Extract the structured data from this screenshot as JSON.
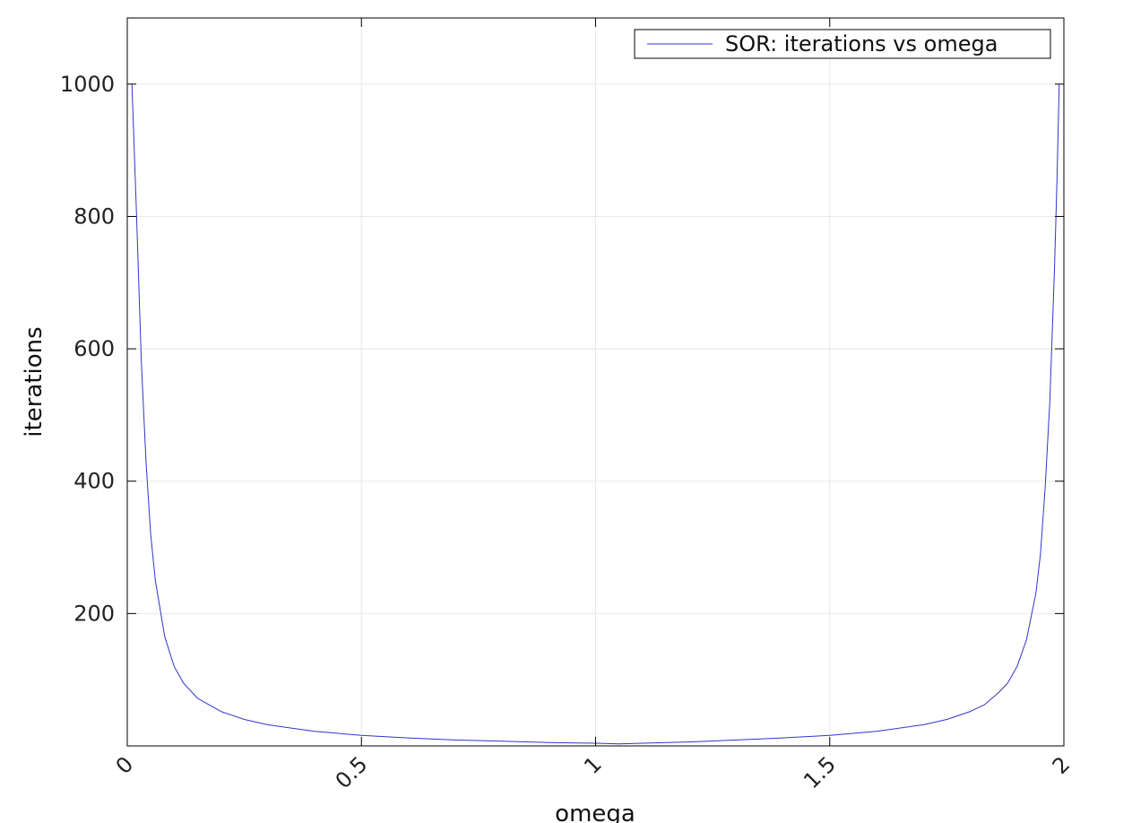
{
  "chart_data": {
    "type": "line",
    "title": "",
    "xlabel": "omega",
    "ylabel": "iterations",
    "xlim": [
      0,
      2
    ],
    "ylim": [
      0,
      1100
    ],
    "xticks": [
      0,
      0.5,
      1,
      1.5,
      2
    ],
    "xtick_labels": [
      "0",
      "0.5",
      "1",
      "1.5",
      "2"
    ],
    "yticks": [
      200,
      400,
      600,
      800,
      1000
    ],
    "ytick_labels": [
      "200",
      "400",
      "600",
      "800",
      "1000"
    ],
    "grid": true,
    "legend_position": "top-right",
    "series": [
      {
        "name": "SOR: iterations vs omega",
        "color": "#3333cc",
        "x": [
          0.01,
          0.02,
          0.03,
          0.04,
          0.05,
          0.06,
          0.08,
          0.1,
          0.12,
          0.15,
          0.2,
          0.25,
          0.3,
          0.35,
          0.4,
          0.5,
          0.6,
          0.7,
          0.8,
          0.9,
          1.0,
          1.05,
          1.1,
          1.2,
          1.3,
          1.4,
          1.5,
          1.6,
          1.7,
          1.75,
          1.8,
          1.83,
          1.86,
          1.88,
          1.9,
          1.92,
          1.94,
          1.95,
          1.96,
          1.97,
          1.98,
          1.985,
          1.99
        ],
        "y": [
          1000,
          800,
          580,
          430,
          320,
          250,
          165,
          120,
          95,
          72,
          52,
          40,
          32,
          27,
          22,
          16,
          12,
          9,
          7,
          5,
          4,
          3,
          4,
          6,
          9,
          12,
          16,
          22,
          32,
          40,
          52,
          62,
          80,
          95,
          120,
          160,
          230,
          290,
          390,
          520,
          720,
          850,
          1000
        ]
      }
    ]
  }
}
